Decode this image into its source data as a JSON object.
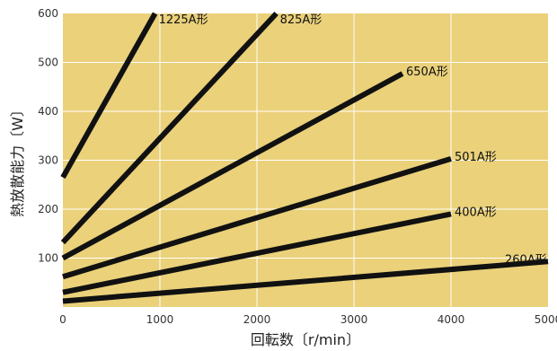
{
  "chart_data": {
    "type": "line",
    "xlabel": "回転数〔r/min〕",
    "ylabel": "熱放散能力〔W〕",
    "xlim": [
      0,
      5000
    ],
    "ylim": [
      0,
      600
    ],
    "x_ticks": [
      "0",
      "1000",
      "2000",
      "3000",
      "4000",
      "5000"
    ],
    "y_ticks": [
      "100",
      "200",
      "300",
      "400",
      "500",
      "600"
    ],
    "grid": true,
    "colors": {
      "plot_bg": "#ead17a",
      "grid": "#ffffff",
      "line": "#111111"
    },
    "series": [
      {
        "name": "1225A形",
        "points": [
          [
            0,
            265
          ],
          [
            950,
            600
          ]
        ]
      },
      {
        "name": "825A形",
        "points": [
          [
            0,
            132
          ],
          [
            2200,
            600
          ]
        ]
      },
      {
        "name": "650A形",
        "points": [
          [
            0,
            100
          ],
          [
            3500,
            477
          ]
        ]
      },
      {
        "name": "501A形",
        "points": [
          [
            0,
            62
          ],
          [
            4000,
            303
          ]
        ]
      },
      {
        "name": "400A形",
        "points": [
          [
            0,
            30
          ],
          [
            4000,
            190
          ]
        ]
      },
      {
        "name": "260A形",
        "points": [
          [
            0,
            12
          ],
          [
            5000,
            93
          ]
        ]
      }
    ]
  }
}
